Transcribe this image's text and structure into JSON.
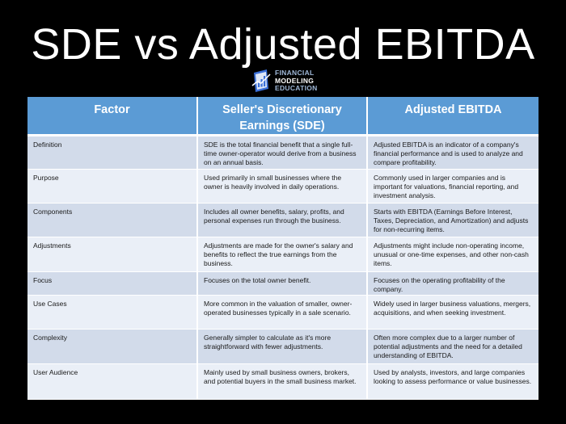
{
  "slide": {
    "title": "SDE vs Adjusted EBITDA"
  },
  "logo": {
    "line1": "FINANCIAL",
    "line2": "MODELING",
    "line3": "EDUCATION",
    "icon": "book-chart-icon",
    "colors": {
      "blue": "#3a6fd8",
      "light": "#9fb8d8"
    }
  },
  "table": {
    "colors": {
      "header": "#5b9bd5",
      "row_odd": "#d2dbea",
      "row_even": "#eaeff7"
    },
    "headers": [
      "Factor",
      "Seller's Discretionary Earnings (SDE)",
      "Adjusted EBITDA"
    ],
    "rows": [
      {
        "factor": "Definition",
        "sde": "SDE is the total financial benefit that a single full-time owner-operator would derive from a business on an annual basis.",
        "ebitda": "Adjusted EBITDA is an indicator of a company's financial performance and is used to analyze and compare profitability."
      },
      {
        "factor": "Purpose",
        "sde": "Used primarily in small businesses where the owner is heavily involved in daily operations.",
        "ebitda": "Commonly used in larger companies and is important for valuations, financial reporting, and investment analysis."
      },
      {
        "factor": "Components",
        "sde": "Includes all owner benefits, salary, profits, and personal expenses run through the business.",
        "ebitda": "Starts with EBITDA (Earnings Before Interest, Taxes, Depreciation, and Amortization) and adjusts for non-recurring items."
      },
      {
        "factor": "Adjustments",
        "sde": "Adjustments are made for the owner's salary and benefits to reflect the true earnings from the business.",
        "ebitda": "Adjustments might include non-operating income, unusual or one-time expenses, and other non-cash items."
      },
      {
        "factor": "Focus",
        "sde": "Focuses on the total owner benefit.",
        "ebitda": "Focuses on the operating profitability of the company."
      },
      {
        "factor": "Use Cases",
        "sde": "More common in the valuation of smaller, owner-operated businesses typically in a sale scenario.",
        "ebitda": "Widely used in larger business valuations, mergers, acquisitions, and when seeking investment."
      },
      {
        "factor": "Complexity",
        "sde": "Generally simpler to calculate as it's more straightforward with fewer adjustments.",
        "ebitda": "Often more complex due to a larger number of potential adjustments and the need for a detailed understanding of EBITDA."
      },
      {
        "factor": "User Audience",
        "sde": "Mainly used by small business owners, brokers, and potential buyers in the small business market.",
        "ebitda": "Used by analysts, investors, and large companies looking to assess performance or value businesses."
      }
    ]
  }
}
